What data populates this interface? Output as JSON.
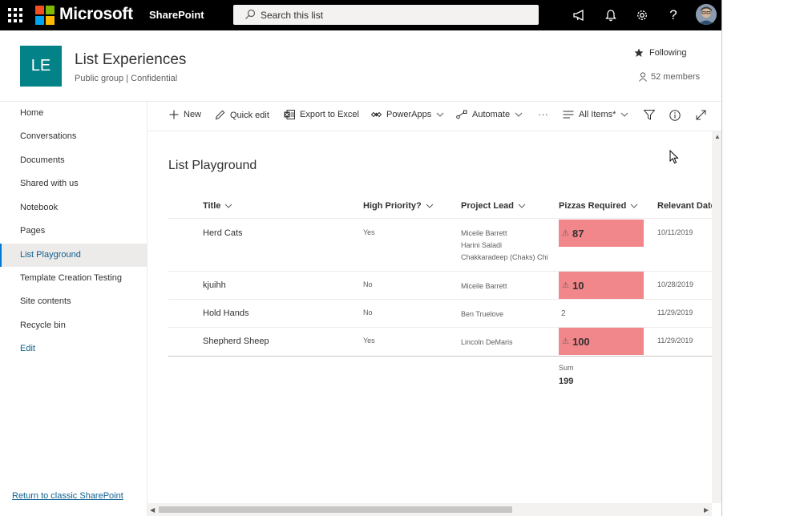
{
  "suite_bar": {
    "brand": "Microsoft",
    "app": "SharePoint",
    "search_placeholder": "Search this list",
    "icons": [
      "waffle-icon",
      "megaphone-icon",
      "bell-icon",
      "gear-icon",
      "help-icon"
    ]
  },
  "site": {
    "logo_initials": "LE",
    "logo_color": "#038387",
    "title": "List Experiences",
    "subtitle": "Public group | Confidential",
    "following_label": "Following",
    "members_label": "52 members"
  },
  "nav": {
    "items": [
      {
        "label": "Home"
      },
      {
        "label": "Conversations"
      },
      {
        "label": "Documents"
      },
      {
        "label": "Shared with us"
      },
      {
        "label": "Notebook"
      },
      {
        "label": "Pages"
      },
      {
        "label": "List Playground",
        "selected": true
      },
      {
        "label": "Template Creation Testing"
      },
      {
        "label": "Site contents"
      },
      {
        "label": "Recycle bin"
      },
      {
        "label": "Edit"
      }
    ],
    "return_link": "Return to classic SharePoint"
  },
  "command_bar": {
    "new": "New",
    "quick_edit": "Quick edit",
    "export": "Export to Excel",
    "powerapps": "PowerApps",
    "automate": "Automate",
    "more": "···",
    "view": "All Items*"
  },
  "list": {
    "title": "List Playground",
    "columns": [
      "Title",
      "High Priority?",
      "Project Lead",
      "Pizzas Required",
      "Relevant Date"
    ],
    "rows": [
      {
        "title": "Herd Cats",
        "priority": "Yes",
        "leads": [
          "Miceile Barrett",
          "Harini Saladi",
          "Chakkaradeep (Chaks) Chi"
        ],
        "pizzas": "87",
        "pizzas_warning": true,
        "date": "10/11/2019"
      },
      {
        "title": "kjuihh",
        "priority": "No",
        "leads": [
          "Miceile Barrett"
        ],
        "pizzas": "10",
        "pizzas_warning": true,
        "date": "10/28/2019"
      },
      {
        "title": "Hold Hands",
        "priority": "No",
        "leads": [
          "Ben Truelove"
        ],
        "pizzas": "2",
        "pizzas_warning": false,
        "date": "11/29/2019"
      },
      {
        "title": "Shepherd Sheep",
        "priority": "Yes",
        "leads": [
          "Lincoln DeMaris"
        ],
        "pizzas": "100",
        "pizzas_warning": true,
        "date": "11/29/2019"
      }
    ],
    "sum_label": "Sum",
    "sum_value": "199",
    "warning_color": "#f1868b"
  },
  "colors": {
    "suite_bar": "#000000",
    "accent": "#0078d4",
    "link": "#0e5f8f"
  }
}
